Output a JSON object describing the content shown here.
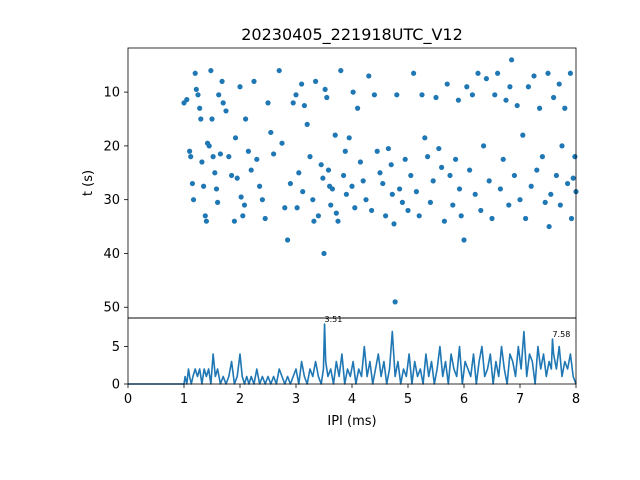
{
  "chart_data": [
    {
      "type": "scatter",
      "title": "20230405_221918UTC_V12",
      "xlabel": "",
      "ylabel": "t (s)",
      "xlim": [
        0,
        8
      ],
      "ylim": [
        52,
        1.8
      ],
      "y_inverted": true,
      "yticks": [
        10,
        20,
        30,
        40,
        50
      ],
      "marker_color": "#1f77b4",
      "points": [
        [
          1.0,
          12.0
        ],
        [
          1.05,
          11.4
        ],
        [
          1.1,
          21.0
        ],
        [
          1.12,
          22.0
        ],
        [
          1.15,
          27.0
        ],
        [
          1.17,
          30.0
        ],
        [
          1.2,
          6.5
        ],
        [
          1.22,
          9.5
        ],
        [
          1.25,
          10.5
        ],
        [
          1.28,
          13.0
        ],
        [
          1.3,
          15.0
        ],
        [
          1.32,
          23.0
        ],
        [
          1.35,
          27.5
        ],
        [
          1.38,
          33.0
        ],
        [
          1.4,
          34.0
        ],
        [
          1.42,
          19.5
        ],
        [
          1.45,
          20.0
        ],
        [
          1.48,
          6.0
        ],
        [
          1.5,
          15.0
        ],
        [
          1.52,
          22.0
        ],
        [
          1.55,
          25.0
        ],
        [
          1.58,
          28.0
        ],
        [
          1.6,
          30.5
        ],
        [
          1.62,
          10.5
        ],
        [
          1.65,
          21.5
        ],
        [
          1.68,
          8.0
        ],
        [
          1.7,
          12.0
        ],
        [
          1.75,
          13.5
        ],
        [
          1.8,
          22.0
        ],
        [
          1.85,
          25.5
        ],
        [
          1.9,
          34.0
        ],
        [
          1.92,
          18.5
        ],
        [
          1.95,
          26.0
        ],
        [
          2.0,
          9.0
        ],
        [
          2.02,
          29.5
        ],
        [
          2.05,
          33.0
        ],
        [
          2.08,
          31.0
        ],
        [
          2.1,
          15.0
        ],
        [
          2.15,
          21.0
        ],
        [
          2.2,
          24.5
        ],
        [
          2.25,
          8.0
        ],
        [
          2.3,
          22.5
        ],
        [
          2.35,
          27.5
        ],
        [
          2.4,
          30.0
        ],
        [
          2.45,
          33.5
        ],
        [
          2.5,
          12.0
        ],
        [
          2.55,
          17.5
        ],
        [
          2.6,
          21.5
        ],
        [
          2.7,
          6.0
        ],
        [
          2.75,
          19.5
        ],
        [
          2.8,
          31.5
        ],
        [
          2.85,
          37.5
        ],
        [
          2.9,
          27.0
        ],
        [
          2.95,
          12.0
        ],
        [
          3.0,
          10.5
        ],
        [
          3.02,
          31.5
        ],
        [
          3.05,
          25.0
        ],
        [
          3.1,
          8.5
        ],
        [
          3.12,
          28.5
        ],
        [
          3.15,
          12.5
        ],
        [
          3.2,
          16.0
        ],
        [
          3.25,
          22.0
        ],
        [
          3.3,
          30.0
        ],
        [
          3.32,
          34.0
        ],
        [
          3.35,
          8.0
        ],
        [
          3.4,
          33.0
        ],
        [
          3.45,
          23.5
        ],
        [
          3.48,
          26.0
        ],
        [
          3.5,
          40.0
        ],
        [
          3.52,
          9.5
        ],
        [
          3.55,
          11.0
        ],
        [
          3.58,
          24.5
        ],
        [
          3.6,
          27.5
        ],
        [
          3.62,
          31.0
        ],
        [
          3.65,
          28.0
        ],
        [
          3.7,
          18.0
        ],
        [
          3.72,
          32.5
        ],
        [
          3.75,
          34.0
        ],
        [
          3.8,
          6.0
        ],
        [
          3.85,
          25.5
        ],
        [
          3.88,
          21.0
        ],
        [
          3.9,
          29.0
        ],
        [
          3.95,
          18.5
        ],
        [
          4.0,
          27.5
        ],
        [
          4.02,
          10.0
        ],
        [
          4.05,
          31.5
        ],
        [
          4.1,
          13.0
        ],
        [
          4.15,
          23.0
        ],
        [
          4.2,
          26.5
        ],
        [
          4.25,
          30.0
        ],
        [
          4.3,
          7.0
        ],
        [
          4.35,
          32.0
        ],
        [
          4.4,
          10.5
        ],
        [
          4.45,
          21.0
        ],
        [
          4.5,
          25.0
        ],
        [
          4.55,
          27.0
        ],
        [
          4.6,
          33.0
        ],
        [
          4.65,
          20.5
        ],
        [
          4.7,
          23.5
        ],
        [
          4.72,
          29.0
        ],
        [
          4.75,
          34.5
        ],
        [
          4.77,
          49.0
        ],
        [
          4.8,
          10.5
        ],
        [
          4.85,
          28.0
        ],
        [
          4.9,
          30.5
        ],
        [
          4.95,
          22.5
        ],
        [
          5.0,
          32.0
        ],
        [
          5.05,
          25.5
        ],
        [
          5.1,
          6.5
        ],
        [
          5.15,
          28.5
        ],
        [
          5.2,
          33.0
        ],
        [
          5.25,
          10.5
        ],
        [
          5.3,
          18.5
        ],
        [
          5.35,
          22.0
        ],
        [
          5.4,
          30.5
        ],
        [
          5.45,
          26.5
        ],
        [
          5.5,
          11.0
        ],
        [
          5.55,
          20.5
        ],
        [
          5.6,
          24.0
        ],
        [
          5.65,
          34.0
        ],
        [
          5.7,
          8.5
        ],
        [
          5.75,
          25.5
        ],
        [
          5.8,
          31.0
        ],
        [
          5.85,
          22.5
        ],
        [
          5.9,
          11.5
        ],
        [
          5.92,
          28.0
        ],
        [
          5.95,
          33.0
        ],
        [
          6.0,
          37.5
        ],
        [
          6.05,
          9.0
        ],
        [
          6.1,
          24.5
        ],
        [
          6.15,
          10.5
        ],
        [
          6.2,
          29.0
        ],
        [
          6.25,
          6.5
        ],
        [
          6.3,
          32.0
        ],
        [
          6.35,
          20.0
        ],
        [
          6.4,
          7.5
        ],
        [
          6.45,
          26.5
        ],
        [
          6.5,
          33.5
        ],
        [
          6.55,
          10.5
        ],
        [
          6.6,
          6.5
        ],
        [
          6.65,
          28.0
        ],
        [
          6.7,
          22.5
        ],
        [
          6.75,
          11.5
        ],
        [
          6.8,
          31.0
        ],
        [
          6.82,
          9.0
        ],
        [
          6.85,
          4.0
        ],
        [
          6.9,
          25.5
        ],
        [
          6.95,
          12.5
        ],
        [
          7.0,
          30.0
        ],
        [
          7.05,
          18.0
        ],
        [
          7.1,
          33.5
        ],
        [
          7.15,
          9.0
        ],
        [
          7.2,
          27.5
        ],
        [
          7.25,
          7.0
        ],
        [
          7.3,
          24.5
        ],
        [
          7.35,
          13.0
        ],
        [
          7.4,
          22.0
        ],
        [
          7.45,
          30.5
        ],
        [
          7.5,
          6.5
        ],
        [
          7.52,
          35.0
        ],
        [
          7.55,
          29.0
        ],
        [
          7.6,
          11.0
        ],
        [
          7.65,
          25.5
        ],
        [
          7.7,
          8.5
        ],
        [
          7.72,
          31.0
        ],
        [
          7.75,
          20.0
        ],
        [
          7.8,
          13.0
        ],
        [
          7.85,
          27.0
        ],
        [
          7.9,
          6.5
        ],
        [
          7.92,
          33.5
        ],
        [
          7.95,
          26.0
        ],
        [
          7.98,
          22.0
        ],
        [
          8.0,
          28.5
        ]
      ]
    },
    {
      "type": "line",
      "xlabel": "IPI (ms)",
      "ylabel": "",
      "xlim": [
        0,
        8
      ],
      "ylim": [
        0,
        8.8
      ],
      "xticks": [
        0,
        1,
        2,
        3,
        4,
        5,
        6,
        7,
        8
      ],
      "yticks": [
        0,
        5
      ],
      "line_color": "#1f77b4",
      "annotations": [
        {
          "text": "3.51",
          "x": 3.51,
          "y": 8
        },
        {
          "text": "7.58",
          "x": 7.58,
          "y": 6
        }
      ],
      "x": [
        0,
        1.0,
        1.02,
        1.05,
        1.08,
        1.1,
        1.13,
        1.16,
        1.2,
        1.24,
        1.28,
        1.32,
        1.36,
        1.4,
        1.44,
        1.48,
        1.52,
        1.56,
        1.6,
        1.65,
        1.7,
        1.75,
        1.8,
        1.85,
        1.9,
        1.95,
        2.0,
        2.04,
        2.08,
        2.12,
        2.16,
        2.2,
        2.25,
        2.3,
        2.35,
        2.4,
        2.45,
        2.5,
        2.55,
        2.6,
        2.65,
        2.7,
        2.75,
        2.8,
        2.85,
        2.9,
        2.95,
        3.0,
        3.05,
        3.1,
        3.15,
        3.2,
        3.25,
        3.3,
        3.35,
        3.4,
        3.45,
        3.49,
        3.51,
        3.53,
        3.57,
        3.62,
        3.67,
        3.72,
        3.77,
        3.82,
        3.87,
        3.92,
        3.97,
        4.02,
        4.07,
        4.12,
        4.17,
        4.22,
        4.27,
        4.32,
        4.37,
        4.42,
        4.47,
        4.52,
        4.57,
        4.62,
        4.67,
        4.72,
        4.77,
        4.82,
        4.87,
        4.92,
        4.97,
        5.02,
        5.07,
        5.12,
        5.17,
        5.22,
        5.27,
        5.32,
        5.37,
        5.42,
        5.47,
        5.52,
        5.57,
        5.62,
        5.67,
        5.72,
        5.77,
        5.82,
        5.87,
        5.92,
        5.97,
        6.02,
        6.07,
        6.12,
        6.17,
        6.22,
        6.27,
        6.32,
        6.37,
        6.42,
        6.47,
        6.52,
        6.57,
        6.62,
        6.67,
        6.72,
        6.77,
        6.82,
        6.87,
        6.92,
        6.97,
        7.02,
        7.07,
        7.12,
        7.17,
        7.22,
        7.27,
        7.32,
        7.37,
        7.42,
        7.47,
        7.52,
        7.56,
        7.58,
        7.6,
        7.65,
        7.7,
        7.75,
        7.8,
        7.85,
        7.9,
        7.95,
        8.0
      ],
      "y": [
        0,
        0,
        1,
        0,
        2,
        1,
        0,
        1,
        2,
        1,
        2,
        0,
        2,
        1,
        2,
        0,
        4,
        1,
        2,
        0,
        1,
        0,
        1,
        3,
        0,
        1,
        4,
        1,
        0,
        1,
        0,
        1,
        0,
        2,
        0,
        1,
        0,
        1,
        0,
        1,
        0,
        2,
        1,
        0,
        1,
        0,
        1,
        2,
        0,
        3,
        1,
        0,
        2,
        1,
        3,
        1,
        0,
        2,
        8,
        3,
        1,
        2,
        0,
        3,
        1,
        4,
        0,
        2,
        1,
        3,
        0,
        2,
        1,
        5,
        1,
        3,
        0,
        2,
        4,
        1,
        3,
        0,
        2,
        7,
        1,
        3,
        0,
        2,
        1,
        4,
        0,
        3,
        1,
        2,
        0,
        4,
        1,
        3,
        0,
        2,
        5,
        1,
        3,
        0,
        4,
        2,
        1,
        5,
        0,
        3,
        2,
        1,
        4,
        0,
        3,
        5,
        1,
        2,
        4,
        0,
        3,
        1,
        5,
        2,
        0,
        4,
        3,
        1,
        5,
        2,
        7,
        1,
        4,
        3,
        0,
        5,
        2,
        4,
        1,
        3,
        2,
        6,
        4,
        2,
        5,
        1,
        3,
        2,
        4,
        1,
        0
      ]
    }
  ]
}
